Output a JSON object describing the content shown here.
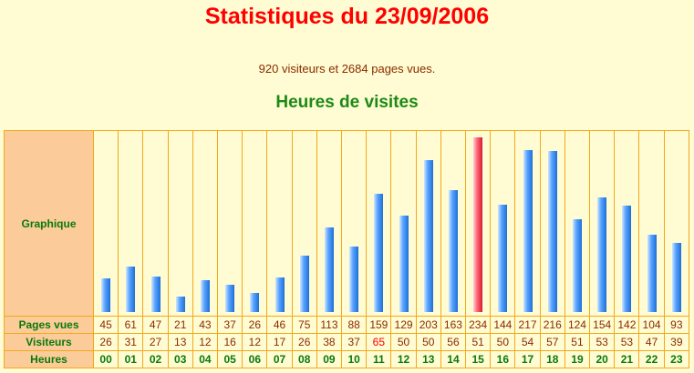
{
  "title": "Statistiques du 23/09/2006",
  "summary": "920 visiteurs et 2684 pages vues.",
  "subtitle": "Heures de visites",
  "labels": {
    "graph": "Graphique",
    "pages": "Pages vues",
    "visitors": "Visiteurs",
    "hours": "Heures"
  },
  "colors": {
    "title": "#ff0000",
    "subtitle": "#1c8a16",
    "bar": "#4d9bf5",
    "bar_max": "#e8344a",
    "grid": "#f1a91b",
    "label_bg": "#fccb9a"
  },
  "chart_data": {
    "type": "bar",
    "title": "Heures de visites",
    "categories": [
      "00",
      "01",
      "02",
      "03",
      "04",
      "05",
      "06",
      "07",
      "08",
      "09",
      "10",
      "11",
      "12",
      "13",
      "14",
      "15",
      "16",
      "17",
      "18",
      "19",
      "20",
      "21",
      "22",
      "23"
    ],
    "series": [
      {
        "name": "Pages vues",
        "values": [
          45,
          61,
          47,
          21,
          43,
          37,
          26,
          46,
          75,
          113,
          88,
          159,
          129,
          203,
          163,
          234,
          144,
          217,
          216,
          124,
          154,
          142,
          104,
          93
        ]
      },
      {
        "name": "Visiteurs",
        "values": [
          26,
          31,
          27,
          13,
          12,
          16,
          12,
          17,
          26,
          38,
          37,
          65,
          50,
          50,
          56,
          51,
          50,
          54,
          57,
          51,
          53,
          53,
          47,
          39
        ]
      }
    ],
    "highlight_category": "15",
    "highlight_visitors_category": "11",
    "ylim": [
      0,
      234
    ]
  }
}
